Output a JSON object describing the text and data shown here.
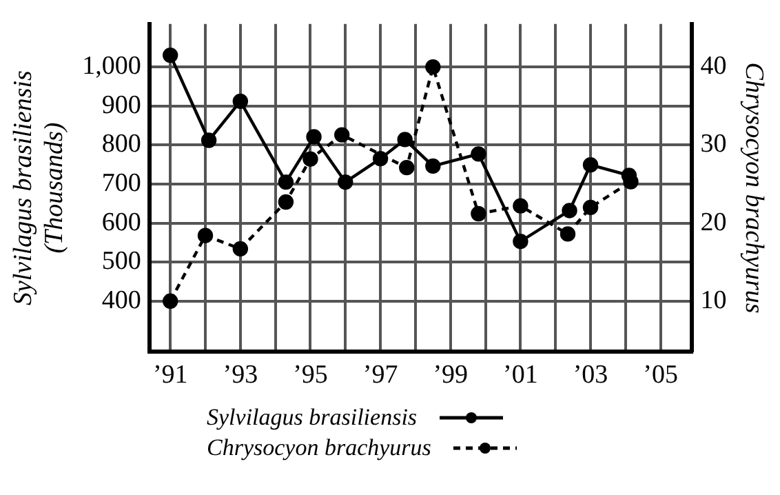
{
  "chart_data": {
    "type": "line",
    "ylabel": "Sylvilagus brasiliensis\n(Thousands)",
    "y2label": "Chrysocyon brachyurus",
    "xlim": [
      1990.4,
      2005.9
    ],
    "xticks": [
      {
        "value": 1991,
        "label": "’91"
      },
      {
        "value": 1992,
        "label": null
      },
      {
        "value": 1993,
        "label": "’93"
      },
      {
        "value": 1994,
        "label": null
      },
      {
        "value": 1995,
        "label": "’95"
      },
      {
        "value": 1996,
        "label": null
      },
      {
        "value": 1997,
        "label": "’97"
      },
      {
        "value": 1998,
        "label": null
      },
      {
        "value": 1999,
        "label": "’99"
      },
      {
        "value": 2000,
        "label": null
      },
      {
        "value": 2001,
        "label": "’01"
      },
      {
        "value": 2002,
        "label": null
      },
      {
        "value": 2003,
        "label": "’03"
      },
      {
        "value": 2004,
        "label": null
      },
      {
        "value": 2005,
        "label": "’05"
      }
    ],
    "ylim": [
      270,
      1110
    ],
    "yticks": [
      400,
      500,
      600,
      700,
      800,
      900,
      {
        "value": 1000,
        "label": "1,000"
      }
    ],
    "y2lim": [
      3.5,
      45.5
    ],
    "y2ticks": [
      10,
      20,
      30,
      40
    ],
    "grid": true,
    "legend": "bottom",
    "marker": "circle",
    "series": [
      {
        "name": "Sylvilagus brasiliensis",
        "color": "#000000",
        "line_style": "solid",
        "x": [
          1991,
          1992.1,
          1993,
          1994.3,
          1995.1,
          1996,
          1997,
          1997.7,
          1998.5,
          1999.8,
          2001,
          2002.4,
          2003,
          2004.1
        ],
        "values": [
          1030,
          812,
          912,
          705,
          821,
          705,
          765,
          814,
          746,
          777,
          553,
          632,
          749,
          722
        ]
      },
      {
        "name": "Chrysocyon brachyurus",
        "color": "#000000",
        "line_style": "dashed",
        "axis": "y2",
        "x": [
          1991,
          1992,
          1993,
          1994.3,
          1995,
          1995.9,
          1997,
          1997.75,
          1998.5,
          1999.8,
          2001,
          2002.35,
          2003,
          2004.15
        ],
        "values": [
          10,
          18.4,
          16.7,
          22.7,
          28.2,
          31.3,
          null,
          27.1,
          40,
          21.2,
          22.2,
          18.6,
          22,
          25.3
        ]
      }
    ]
  }
}
